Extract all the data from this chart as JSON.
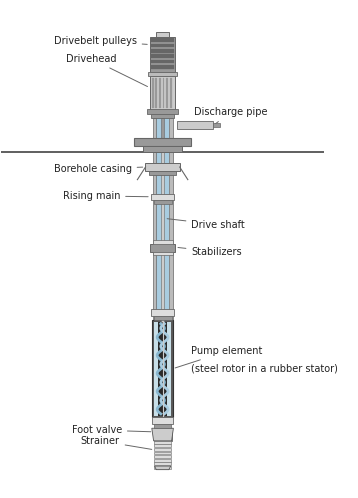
{
  "bg_color": "#ffffff",
  "gray_dark": "#666666",
  "gray_mid": "#999999",
  "gray_light": "#bbbbbb",
  "gray_lighter": "#cccccc",
  "gray_lightest": "#dddddd",
  "dark_bg": "#4a4a4a",
  "blue_light": "#a8cce0",
  "blue_mid": "#7aafc8",
  "blue_pale": "#c8dfe8",
  "figsize": [
    3.58,
    4.98
  ],
  "dpi": 100,
  "labels": {
    "drivebelt_pulleys": "Drivebelt pulleys",
    "drivehead": "Drivehead",
    "discharge_pipe": "Discharge pipe",
    "borehole_casing": "Borehole casing",
    "rising_main": "Rising main",
    "drive_shaft": "Drive shaft",
    "stabilizers": "Stabilizers",
    "pump_element_1": "Pump element",
    "pump_element_2": "(steel rotor in a rubber stator)",
    "foot_valve": "Foot valve",
    "strainer": "Strainer"
  }
}
